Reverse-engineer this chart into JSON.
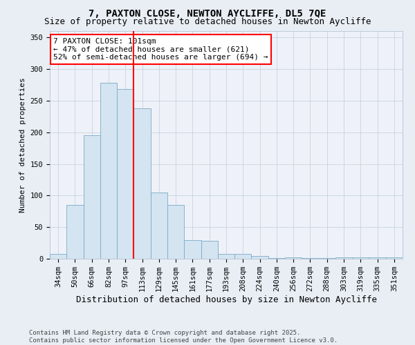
{
  "title": "7, PAXTON CLOSE, NEWTON AYCLIFFE, DL5 7QE",
  "subtitle": "Size of property relative to detached houses in Newton Aycliffe",
  "xlabel": "Distribution of detached houses by size in Newton Aycliffe",
  "ylabel": "Number of detached properties",
  "categories": [
    "34sqm",
    "50sqm",
    "66sqm",
    "82sqm",
    "97sqm",
    "113sqm",
    "129sqm",
    "145sqm",
    "161sqm",
    "177sqm",
    "193sqm",
    "208sqm",
    "224sqm",
    "240sqm",
    "256sqm",
    "272sqm",
    "288sqm",
    "303sqm",
    "319sqm",
    "335sqm",
    "351sqm"
  ],
  "values": [
    8,
    85,
    195,
    278,
    268,
    238,
    105,
    85,
    30,
    28,
    8,
    8,
    4,
    1,
    2,
    1,
    1,
    2,
    2,
    2,
    2
  ],
  "bar_color": "#d4e4f0",
  "bar_edgecolor": "#7aaac8",
  "vline_bar_index": 4,
  "vline_color": "red",
  "annotation_text": "7 PAXTON CLOSE: 101sqm\n← 47% of detached houses are smaller (621)\n52% of semi-detached houses are larger (694) →",
  "annotation_box_color": "white",
  "annotation_box_edgecolor": "red",
  "ylim": [
    0,
    360
  ],
  "yticks": [
    0,
    50,
    100,
    150,
    200,
    250,
    300,
    350
  ],
  "footer_text": "Contains HM Land Registry data © Crown copyright and database right 2025.\nContains public sector information licensed under the Open Government Licence v3.0.",
  "background_color": "#e8eef4",
  "plot_background_color": "#eef2f8",
  "title_fontsize": 10,
  "subtitle_fontsize": 9,
  "xlabel_fontsize": 9,
  "ylabel_fontsize": 8,
  "tick_fontsize": 7.5,
  "annotation_fontsize": 8,
  "footer_fontsize": 6.5
}
